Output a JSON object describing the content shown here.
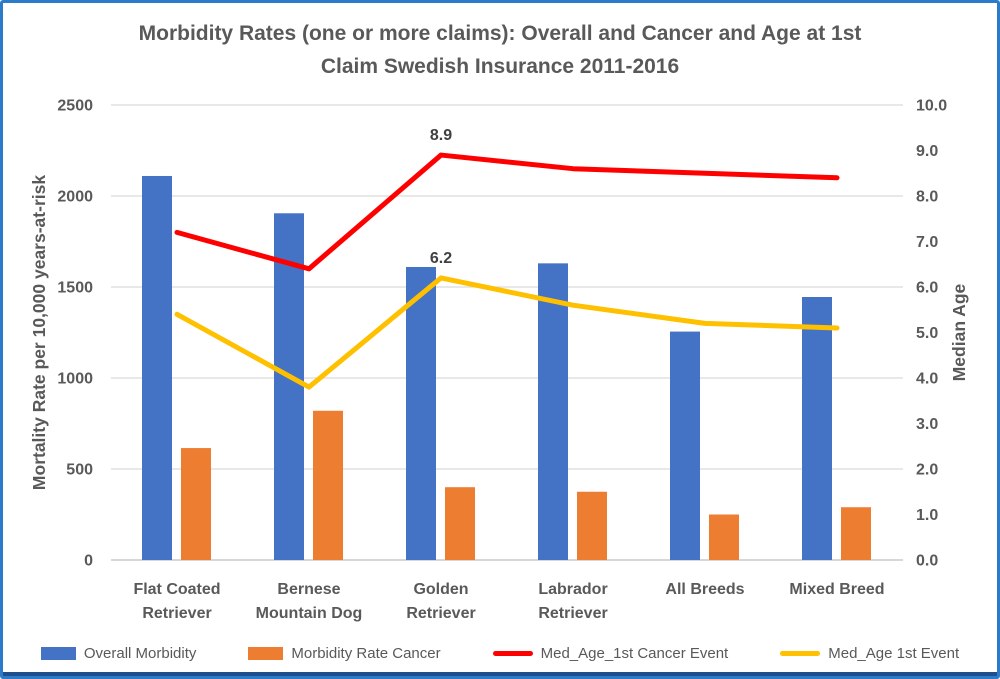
{
  "title": {
    "line1": "Morbidity Rates (one or more claims): Overall and Cancer and Age at 1st",
    "line2": "Claim Swedish Insurance 2011-2016"
  },
  "chart_data": {
    "type": "bar+line combo, dual axis",
    "title": "Morbidity Rates (one or more claims): Overall and Cancer and Age at 1st Claim Swedish Insurance 2011-2016",
    "categories": [
      "Flat Coated Retriever",
      "Bernese Mountain Dog",
      "Golden Retriever",
      "Labrador Retriever",
      "All Breeds",
      "Mixed Breed"
    ],
    "category_label_lines": [
      [
        "Flat Coated",
        "Retriever"
      ],
      [
        "Bernese",
        "Mountain Dog"
      ],
      [
        "Golden",
        "Retriever"
      ],
      [
        "Labrador",
        "Retriever"
      ],
      [
        "All Breeds"
      ],
      [
        "Mixed Breed"
      ]
    ],
    "bar_series": [
      {
        "name": "Overall Morbidity",
        "color": "#4472c4",
        "axis": "left",
        "values": [
          2110,
          1905,
          1610,
          1630,
          1255,
          1445
        ]
      },
      {
        "name": "Morbidity Rate Cancer",
        "color": "#ed7d31",
        "axis": "left",
        "values": [
          615,
          820,
          400,
          375,
          250,
          290
        ]
      }
    ],
    "line_series": [
      {
        "name": "Med_Age_1st Cancer Event",
        "color": "#ff0000",
        "axis": "right",
        "values": [
          7.2,
          6.4,
          8.9,
          8.6,
          8.5,
          8.4
        ],
        "point_labels": {
          "2": "8.9"
        }
      },
      {
        "name": "Med_Age 1st Event",
        "color": "#ffc000",
        "axis": "right",
        "values": [
          5.4,
          3.8,
          6.2,
          5.6,
          5.2,
          5.1
        ],
        "point_labels": {
          "2": "6.2"
        }
      }
    ],
    "left_axis": {
      "label": "Mortality Rate per 10,000 years-at-risk",
      "min": 0,
      "max": 2500,
      "step": 500,
      "ticks": [
        "0",
        "500",
        "1000",
        "1500",
        "2000",
        "2500"
      ]
    },
    "right_axis": {
      "label": "Median Age",
      "min": 0,
      "max": 10,
      "step": 1,
      "ticks": [
        "0.0",
        "1.0",
        "2.0",
        "3.0",
        "4.0",
        "5.0",
        "6.0",
        "7.0",
        "8.0",
        "9.0",
        "10.0"
      ]
    },
    "grid": "horizontal only",
    "legend_position": "bottom",
    "text_color": "#595959",
    "gridline_color": "#d9d9d9",
    "axis_line_color": "#bfbfbf"
  },
  "legend": {
    "items": [
      {
        "label": "Overall Morbidity",
        "color": "#4472c4",
        "shape": "bar"
      },
      {
        "label": "Morbidity Rate Cancer",
        "color": "#ed7d31",
        "shape": "bar"
      },
      {
        "label": "Med_Age_1st Cancer Event",
        "color": "#ff0000",
        "shape": "line"
      },
      {
        "label": "Med_Age 1st Event",
        "color": "#ffc000",
        "shape": "line"
      }
    ]
  }
}
